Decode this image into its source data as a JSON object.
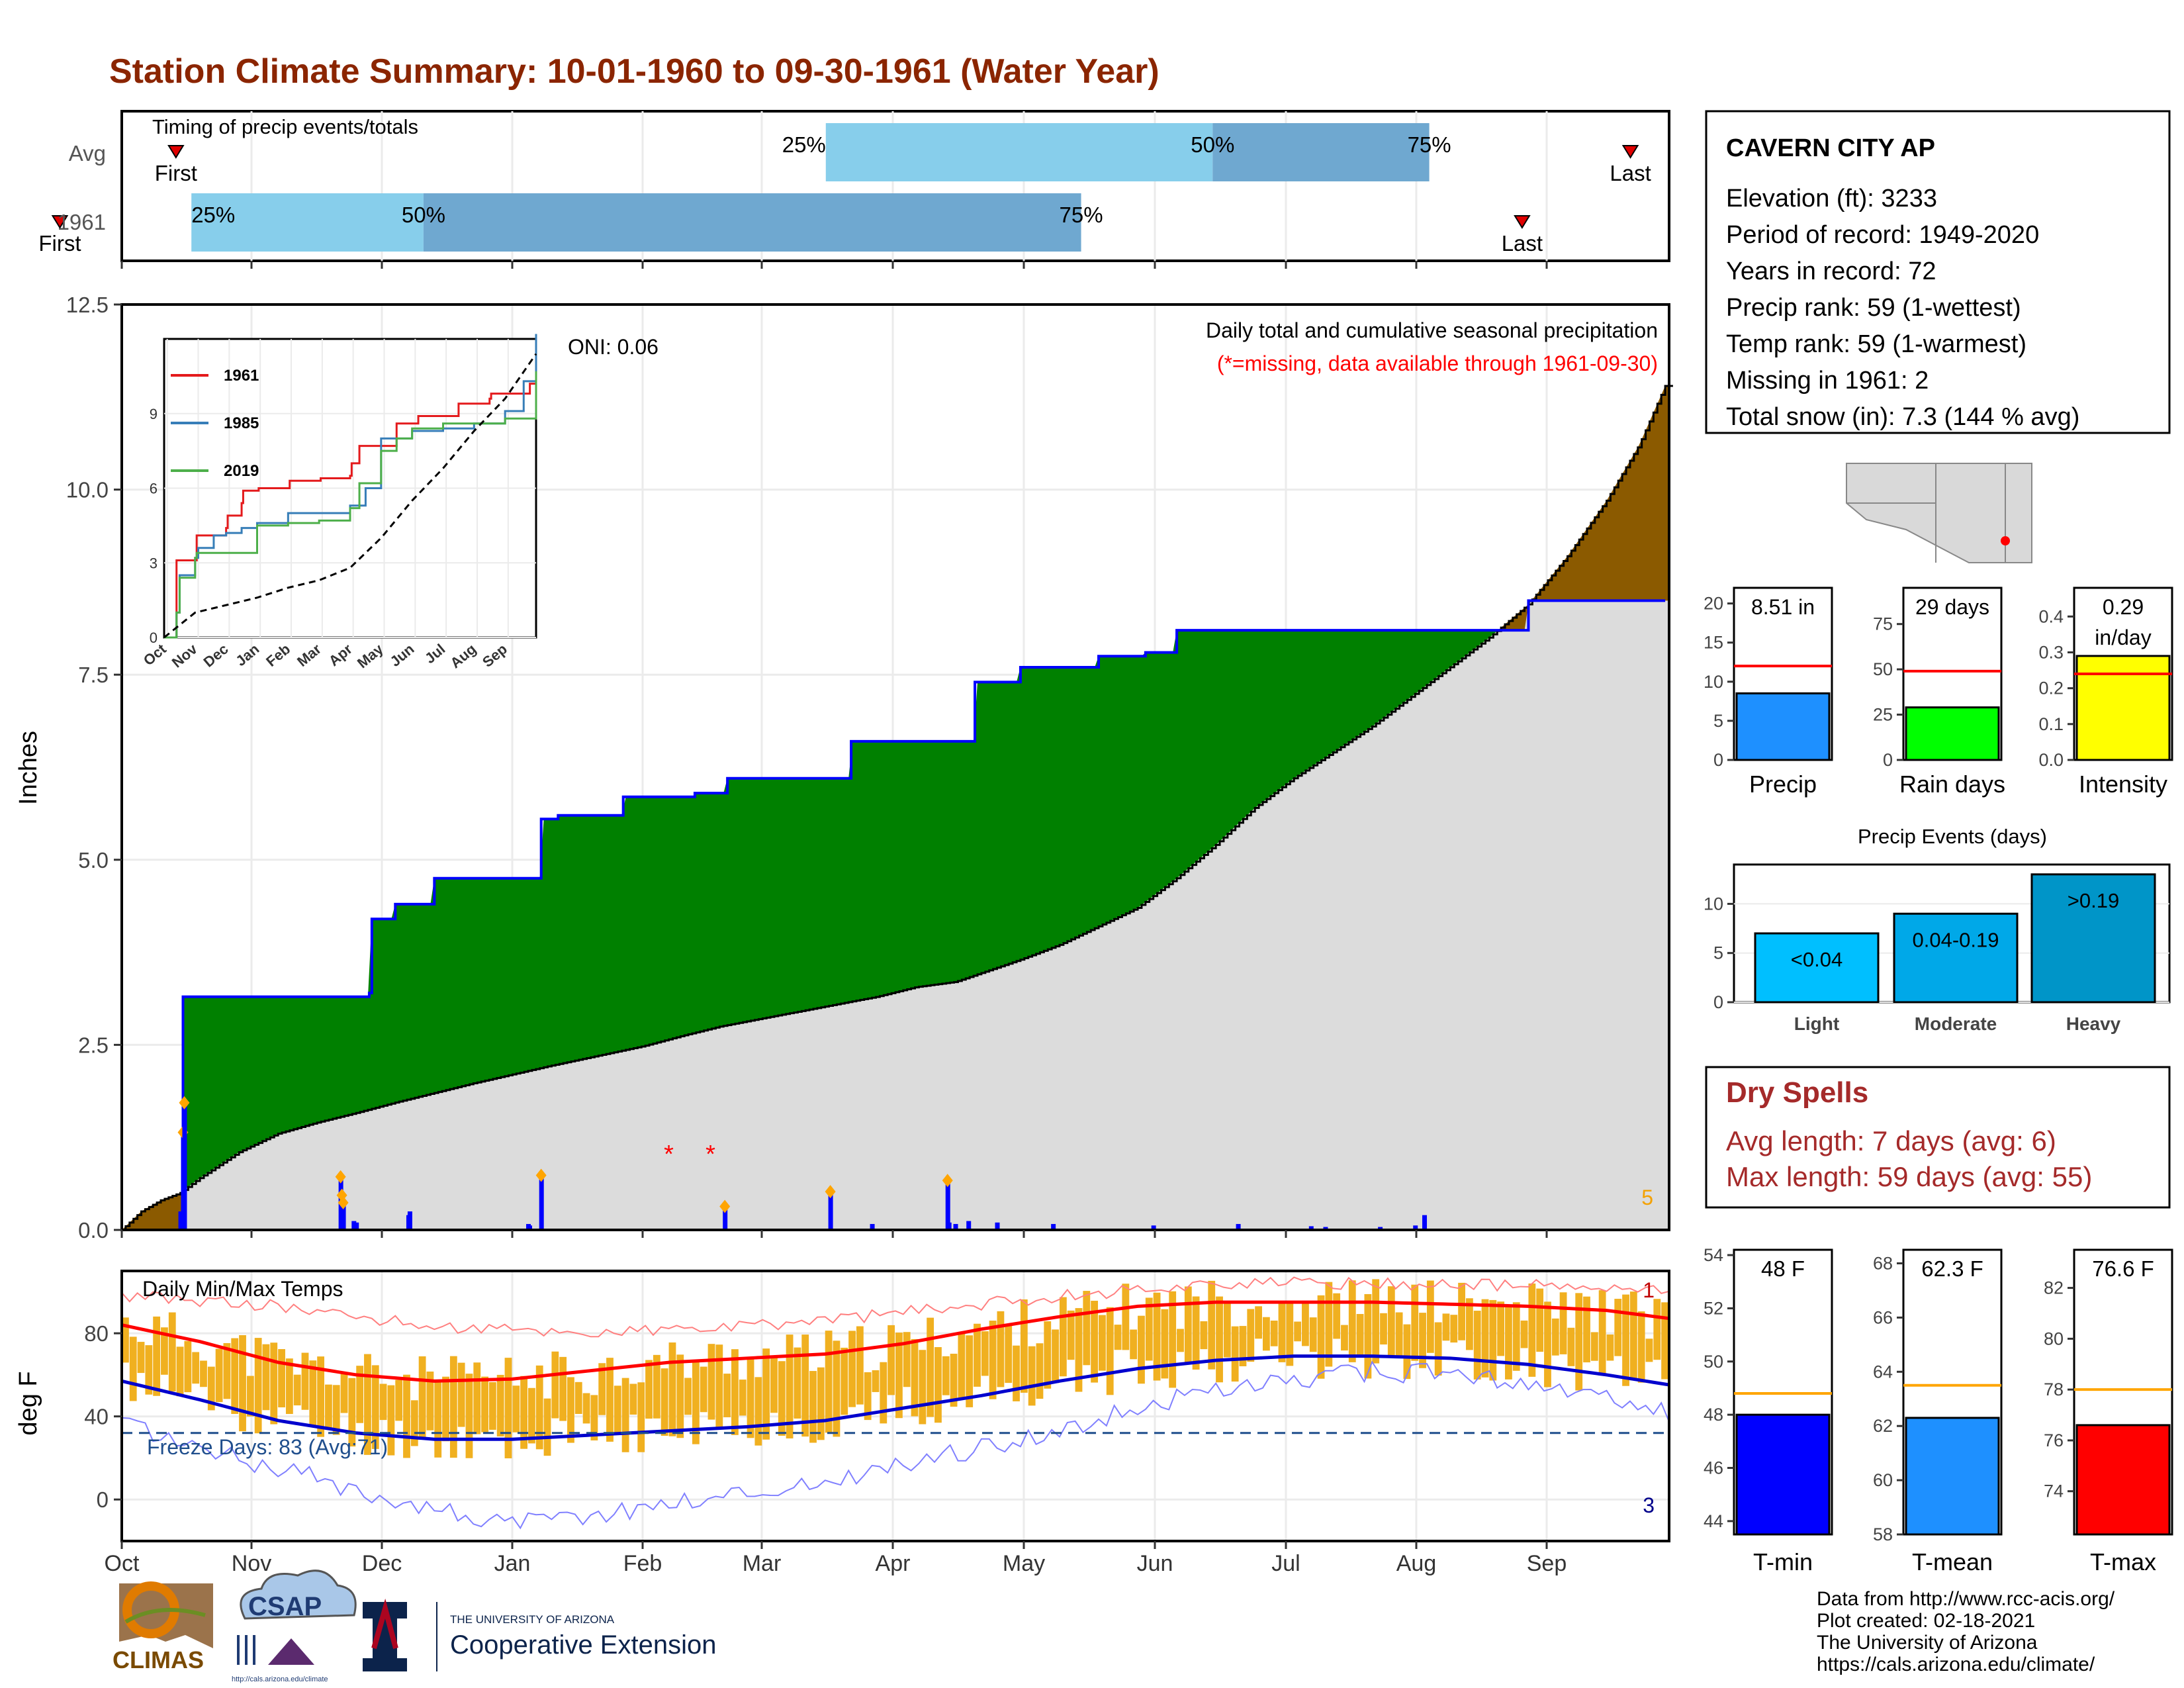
{
  "title": "Station Climate Summary: 10-01-1960 to 09-30-1961 (Water Year)",
  "months": [
    "Oct",
    "Nov",
    "Dec",
    "Jan",
    "Feb",
    "Mar",
    "Apr",
    "May",
    "Jun",
    "Jul",
    "Aug",
    "Sep"
  ],
  "timing": {
    "label": "Timing of precip events/totals",
    "rows": [
      {
        "name": "Avg",
        "first_label": "First",
        "last_label": "Last",
        "p25": "25%",
        "p50": "50%",
        "p75": "75%",
        "first": 0.035,
        "q25": 0.455,
        "q50": 0.705,
        "q75": 0.845,
        "last": 0.975
      },
      {
        "name": "1961",
        "first_label": "First",
        "last_label": "Last",
        "p25": "25%",
        "p50": "50%",
        "p75": "75%",
        "first": -0.04,
        "q25": 0.045,
        "q50": 0.195,
        "q75": 0.62,
        "last": 0.905
      }
    ]
  },
  "chart_data": [
    {
      "type": "area",
      "id": "precip-main",
      "title": "Daily total and cumulative seasonal precipitation",
      "subtitle": "(*=missing, data available through 1961-09-30)",
      "ylabel": "Inches",
      "yticks": [
        "0.0",
        "2.5",
        "5.0",
        "7.5",
        "10.0",
        "12.5"
      ],
      "ylim": [
        0,
        12.5
      ],
      "oni": "ONI: 0.06",
      "corner_number": "5",
      "series": [
        {
          "name": "1961 cumulative",
          "x_day": [
            0,
            46,
            47,
            165,
            190,
            192,
            210,
            240,
            320,
            322,
            335,
            355,
            385,
            415,
            440,
            465,
            470,
            500,
            510,
            542,
            550,
            560,
            602,
            655,
            690,
            720,
            750,
            765,
            786,
            792,
            810,
            840,
            1080,
            1185
          ],
          "y": [
            0,
            0,
            3.15,
            3.15,
            3.2,
            4.2,
            4.4,
            4.75,
            4.75,
            5.55,
            5.6,
            5.6,
            5.85,
            5.85,
            5.9,
            6.1,
            6.1,
            6.1,
            6.1,
            6.1,
            6.1,
            6.6,
            6.6,
            7.4,
            7.6,
            7.6,
            7.75,
            7.75,
            7.8,
            7.8,
            8.1,
            8.1,
            8.5,
            8.5
          ]
        },
        {
          "name": "Avg cumulative",
          "x_day": [
            0,
            15,
            30,
            45,
            60,
            90,
            120,
            150,
            180,
            210,
            240,
            270,
            300,
            330,
            365,
            400,
            430,
            460,
            490,
            520,
            550,
            580,
            610,
            640,
            665,
            690,
            720,
            750,
            780,
            810,
            840,
            870,
            900,
            930,
            960,
            990,
            1020,
            1050,
            1080,
            1110,
            1140,
            1165,
            1185
          ],
          "y": [
            0,
            0.25,
            0.4,
            0.5,
            0.7,
            1.05,
            1.3,
            1.45,
            1.58,
            1.72,
            1.85,
            1.98,
            2.1,
            2.22,
            2.35,
            2.48,
            2.62,
            2.75,
            2.85,
            2.95,
            3.05,
            3.15,
            3.28,
            3.35,
            3.5,
            3.65,
            3.85,
            4.1,
            4.35,
            4.75,
            5.2,
            5.7,
            6.1,
            6.45,
            6.8,
            7.2,
            7.6,
            8.0,
            8.45,
            9.1,
            9.85,
            10.6,
            11.4
          ]
        },
        {
          "name": "Daily precip",
          "x_day": [
            45,
            47,
            48,
            168,
            169,
            170,
            178,
            180,
            220,
            221,
            312,
            313,
            322,
            463,
            544,
            576,
            634,
            635,
            640,
            650,
            672,
            715,
            792,
            857,
            913,
            924,
            966,
            993,
            1000
          ],
          "y": [
            0.25,
            1.3,
            1.7,
            0.7,
            0.45,
            0.35,
            0.12,
            0.1,
            0.2,
            0.25,
            0.08,
            0.06,
            0.72,
            0.3,
            0.5,
            0.08,
            0.65,
            0.1,
            0.08,
            0.12,
            0.1,
            0.08,
            0.06,
            0.08,
            0.05,
            0.04,
            0.04,
            0.06,
            0.2
          ]
        },
        {
          "name": "Missing",
          "x_day": [
            420,
            452
          ],
          "y": [
            1.0,
            1.0
          ]
        }
      ],
      "inset": {
        "type": "line",
        "xticks": [
          "Oct",
          "Nov",
          "Dec",
          "Jan",
          "Feb",
          "Mar",
          "Apr",
          "May",
          "Jun",
          "Jul",
          "Aug",
          "Sep"
        ],
        "yticks": [
          "0",
          "3",
          "6",
          "9"
        ],
        "ylim": [
          0,
          12
        ],
        "legend": [
          "1961",
          "1985",
          "2019"
        ],
        "series": [
          {
            "name": "1961",
            "color": "#e41a1c",
            "x": [
              0,
              0.3,
              0.4,
              1,
              1.05,
              2,
              2.05,
              2.5,
              2.55,
              3,
              3.05,
              4,
              4.05,
              5,
              5.05,
              6,
              6.05,
              6.3,
              7.5,
              8.2,
              9.5,
              10.5,
              10.55,
              11.8,
              12
            ],
            "y": [
              0,
              0,
              3.1,
              3.1,
              4.1,
              4.4,
              4.9,
              5.4,
              5.9,
              5.9,
              6,
              6,
              6.3,
              6.3,
              6.4,
              6.5,
              7,
              7.7,
              8.6,
              8.9,
              9.4,
              9.6,
              9.8,
              10.2,
              10.7
            ]
          },
          {
            "name": "1985",
            "color": "#377eb8",
            "x": [
              0,
              0.4,
              0.5,
              1,
              1.1,
              1.6,
              2,
              2.5,
              3,
              4,
              5,
              6,
              6.5,
              7,
              8,
              9,
              10,
              11,
              11.6,
              12
            ],
            "y": [
              0,
              1,
              2.5,
              3.2,
              3.6,
              4.1,
              4.2,
              4.4,
              4.6,
              5,
              5,
              5.3,
              6,
              8,
              8.3,
              8.4,
              8.6,
              9.1,
              10.3,
              12.2
            ]
          },
          {
            "name": "2019",
            "color": "#4daf4a",
            "x": [
              0,
              0.4,
              0.5,
              1,
              1.05,
              2,
              3,
              4,
              5,
              6,
              6.3,
              7,
              7.5,
              8,
              9,
              10,
              11,
              12
            ],
            "y": [
              0,
              1,
              2.4,
              3.2,
              3.4,
              3.4,
              4.5,
              4.6,
              4.7,
              5.2,
              6.2,
              7.5,
              8,
              8.4,
              8.6,
              8.6,
              8.8,
              10.7
            ]
          },
          {
            "name": "Avg",
            "color": "#000000",
            "x": [
              0,
              1,
              2,
              3,
              4,
              5,
              6,
              7,
              8,
              9,
              10,
              11,
              12
            ],
            "y": [
              0,
              1,
              1.3,
              1.6,
              2,
              2.3,
              2.8,
              4,
              5.5,
              6.8,
              8.3,
              9.6,
              11.4
            ]
          }
        ]
      }
    },
    {
      "type": "bar",
      "id": "precip-summary",
      "categories": [
        "Precip",
        "Rain days",
        "Intensity"
      ],
      "values": [
        8.51,
        29,
        0.29
      ],
      "averages": [
        12.0,
        49,
        0.24
      ],
      "labels": [
        "8.51 in",
        "29 days",
        "0.29 in/day"
      ],
      "colors": [
        "#1e90ff",
        "#00ff00",
        "#ffff00"
      ],
      "ylims": [
        [
          0,
          22
        ],
        [
          0,
          95
        ],
        [
          0,
          0.48
        ]
      ],
      "yticks": [
        [
          "0",
          "5",
          "10",
          "15",
          "20"
        ],
        [
          "0",
          "25",
          "50",
          "75"
        ],
        [
          "0.0",
          "0.1",
          "0.2",
          "0.3",
          "0.4"
        ]
      ]
    },
    {
      "type": "bar",
      "id": "precip-events",
      "title": "Precip Events (days)",
      "categories": [
        "Light",
        "Moderate",
        "Heavy"
      ],
      "values": [
        7,
        9,
        13
      ],
      "labels": [
        "<0.04",
        "0.04-0.19",
        ">0.19"
      ],
      "colors": [
        "#00bfff",
        "#00a8e8",
        "#0095c8"
      ],
      "ylim": [
        0,
        14
      ],
      "yticks": [
        "0",
        "5",
        "10"
      ]
    },
    {
      "type": "line",
      "id": "temperature",
      "title": "Daily Min/Max Temps",
      "ylabel": "deg F",
      "yticks": [
        "0",
        "40",
        "80"
      ],
      "ylim": [
        -20,
        110
      ],
      "freeze_label": "Freeze Days: 83 (Avg:71)",
      "freeze_line": 32,
      "top_number": "1",
      "bottom_number": "3",
      "avg_max": {
        "x_day": [
          0,
          60,
          120,
          180,
          240,
          300,
          360,
          420,
          480,
          540,
          600,
          660,
          720,
          780,
          840,
          900,
          960,
          1020,
          1080,
          1140,
          1190
        ],
        "y": [
          84,
          76,
          66,
          60,
          57,
          58,
          62,
          66,
          68,
          70,
          75,
          82,
          88,
          93,
          95,
          95,
          95,
          94,
          93,
          91,
          87
        ]
      },
      "avg_min": {
        "x_day": [
          0,
          60,
          120,
          180,
          240,
          300,
          360,
          420,
          480,
          540,
          600,
          660,
          720,
          780,
          840,
          900,
          960,
          1020,
          1080,
          1140,
          1190
        ],
        "y": [
          57,
          48,
          38,
          32,
          29,
          29,
          31,
          33,
          35,
          38,
          44,
          50,
          57,
          63,
          67,
          69,
          69,
          68,
          65,
          60,
          55
        ]
      },
      "rec_max": {
        "x_day": [
          0,
          120,
          240,
          360,
          480,
          600,
          720,
          840,
          960,
          1080,
          1190
        ],
        "y": [
          98,
          93,
          83,
          80,
          83,
          90,
          98,
          104,
          104,
          103,
          100
        ]
      },
      "rec_min": {
        "x_day": [
          0,
          60,
          120,
          180,
          240,
          300,
          360,
          420,
          480,
          540,
          600,
          660,
          720,
          780,
          840,
          900,
          960,
          1020,
          1080,
          1140,
          1190
        ],
        "y": [
          38,
          25,
          15,
          5,
          -5,
          -12,
          -8,
          -2,
          3,
          8,
          17,
          25,
          33,
          44,
          52,
          58,
          62,
          60,
          55,
          48,
          42
        ]
      }
    },
    {
      "type": "bar",
      "id": "temp-summary",
      "categories": [
        "T-min",
        "T-mean",
        "T-max"
      ],
      "values": [
        48,
        62.3,
        76.6
      ],
      "averages": [
        48.8,
        63.5,
        78.0
      ],
      "labels": [
        "48 F",
        "62.3 F",
        "76.6 F"
      ],
      "colors": [
        "#0000ff",
        "#1e90ff",
        "#ff0000"
      ],
      "ylims": [
        [
          43.5,
          54.2
        ],
        [
          58,
          68.5
        ],
        [
          72.3,
          83.5
        ]
      ],
      "yticks": [
        [
          "44",
          "46",
          "48",
          "50",
          "52",
          "54"
        ],
        [
          "58",
          "60",
          "62",
          "64",
          "66",
          "68"
        ],
        [
          "74",
          "76",
          "78",
          "80",
          "82"
        ]
      ]
    }
  ],
  "station": {
    "name": "CAVERN CITY AP",
    "lines": [
      "Elevation (ft): 3233",
      "Period of record: 1949-2020",
      "Years in record: 72",
      "Precip rank: 59 (1-wettest)",
      "Temp rank: 59 (1-warmest)",
      "Missing in 1961: 2",
      "Total snow (in): 7.3 (144 % avg)"
    ]
  },
  "dry_spells": {
    "title": "Dry Spells",
    "avg": "Avg length: 7 days (avg: 6)",
    "max": "Max length: 59 days (avg: 55)"
  },
  "footer": {
    "lines": [
      "Data from http://www.rcc-acis.org/",
      "Plot created: 02-18-2021",
      "The University of Arizona",
      "https://cals.arizona.edu/climate/"
    ],
    "logo1": "CLIMAS",
    "logo2": "CSAP",
    "logo2_url": "http://cals.arizona.edu/climate",
    "logo3_top": "THE UNIVERSITY OF ARIZONA",
    "logo3_main": "Cooperative Extension"
  }
}
